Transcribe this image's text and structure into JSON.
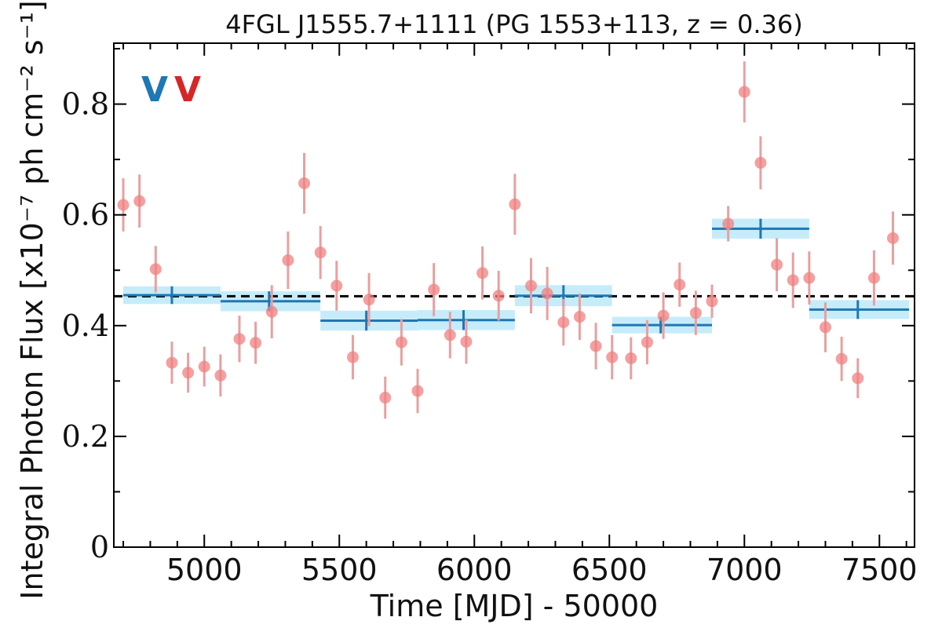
{
  "chart_data": {
    "type": "scatter",
    "title": "4FGL J1555.7+1111 (PG 1553+113, z = 0.36)",
    "xlabel": "Time [MJD] - 50000",
    "ylabel": "Integral Photon Flux [x10⁻⁷ ph cm⁻² s⁻¹]",
    "xlim": [
      4665,
      7630
    ],
    "ylim": [
      0,
      0.91
    ],
    "x_ticks": [
      5000,
      5500,
      6000,
      6500,
      7000,
      7500
    ],
    "y_ticks": [
      0,
      0.2,
      0.4,
      0.6,
      0.8
    ],
    "x_tick_labels": [
      "5000",
      "5500",
      "6000",
      "6500",
      "7000",
      "7500"
    ],
    "y_tick_labels": [
      "0",
      "0.2",
      "0.4",
      "0.6",
      "0.8"
    ],
    "mean_flux": 0.453,
    "legend_markers": [
      {
        "text": "V",
        "color": "#1f77b4"
      },
      {
        "text": "V",
        "color": "#d62728"
      }
    ],
    "colors": {
      "monthly": "#f08080",
      "monthly_err": "#e8a0a0",
      "bin_line": "#1f77b4",
      "bin_band": "#c6ecfa",
      "mean_line": "#000000"
    },
    "series": [
      {
        "kind": "monthly",
        "x": [
          4700,
          4760,
          4820,
          4880,
          4940,
          5000,
          5060,
          5130,
          5190,
          5250,
          5310,
          5370,
          5430,
          5490,
          5550,
          5610,
          5670,
          5730,
          5790,
          5850,
          5910,
          5970,
          6030,
          6090,
          6150,
          6210,
          6270,
          6330,
          6390,
          6450,
          6510,
          6580,
          6640,
          6700,
          6760,
          6820,
          6880,
          6940,
          7000,
          7060,
          7120,
          7180,
          7240,
          7300,
          7360,
          7420,
          7480,
          7550
        ],
        "y": [
          0.618,
          0.625,
          0.502,
          0.333,
          0.315,
          0.326,
          0.31,
          0.376,
          0.369,
          0.425,
          0.518,
          0.657,
          0.532,
          0.472,
          0.343,
          0.447,
          0.27,
          0.37,
          0.282,
          0.465,
          0.383,
          0.371,
          0.495,
          0.454,
          0.619,
          0.472,
          0.458,
          0.406,
          0.416,
          0.363,
          0.343,
          0.341,
          0.37,
          0.418,
          0.474,
          0.423,
          0.444,
          0.584,
          0.822,
          0.694,
          0.51,
          0.482,
          0.486,
          0.397,
          0.34,
          0.305,
          0.486,
          0.558
        ],
        "yerr": [
          0.048,
          0.048,
          0.042,
          0.038,
          0.036,
          0.036,
          0.038,
          0.042,
          0.038,
          0.048,
          0.052,
          0.055,
          0.048,
          0.045,
          0.04,
          0.048,
          0.038,
          0.042,
          0.04,
          0.048,
          0.042,
          0.04,
          0.048,
          0.045,
          0.055,
          0.05,
          0.048,
          0.042,
          0.042,
          0.042,
          0.04,
          0.038,
          0.04,
          0.042,
          0.04,
          0.04,
          0.03,
          0.032,
          0.055,
          0.048,
          0.048,
          0.05,
          0.048,
          0.045,
          0.04,
          0.036,
          0.05,
          0.048
        ]
      },
      {
        "kind": "binned",
        "x_low": [
          4700,
          5060,
          5430,
          5790,
          6150,
          6510,
          6880,
          7240
        ],
        "x_high": [
          5060,
          5430,
          5790,
          6150,
          6510,
          6880,
          7240,
          7610
        ],
        "x_center": [
          4880,
          5240,
          5600,
          5960,
          6330,
          6690,
          7060,
          7420
        ],
        "y": [
          0.455,
          0.444,
          0.409,
          0.41,
          0.454,
          0.401,
          0.575,
          0.429
        ],
        "yerr": [
          0.016,
          0.018,
          0.018,
          0.018,
          0.019,
          0.015,
          0.018,
          0.017
        ]
      }
    ]
  }
}
